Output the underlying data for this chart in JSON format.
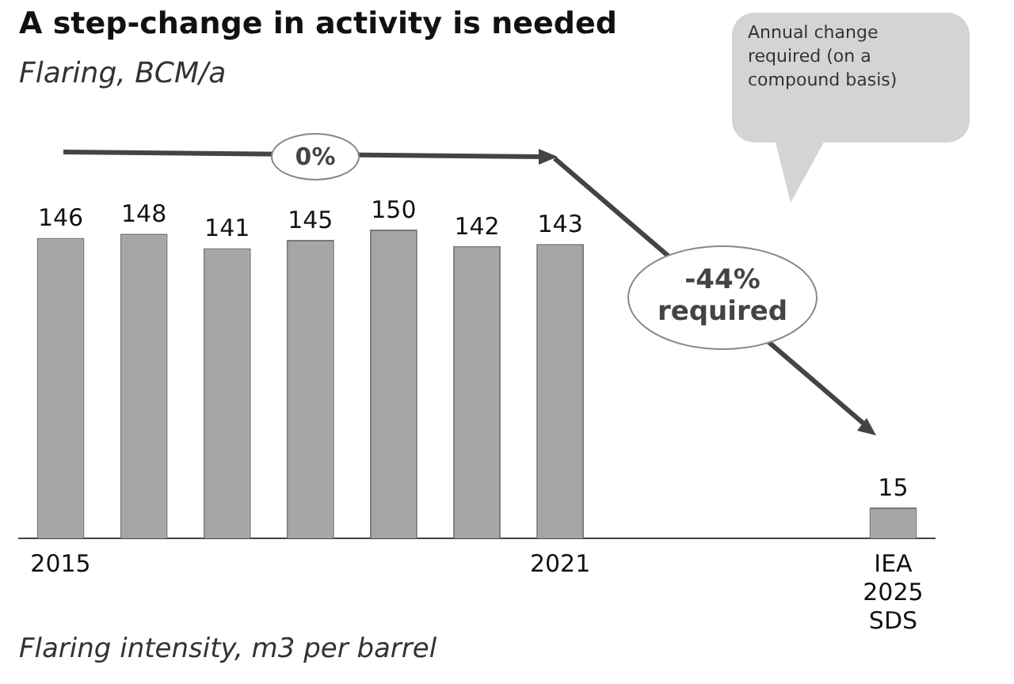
{
  "chart_data": {
    "type": "bar",
    "title": "A step-change in activity is needed",
    "subtitle": "Flaring, BCM/a",
    "categories": [
      "2015",
      null,
      null,
      null,
      null,
      null,
      "2021",
      null,
      null,
      null,
      "IEA\n2025\nSDS"
    ],
    "values": [
      146,
      148,
      141,
      145,
      150,
      142,
      143,
      null,
      null,
      null,
      15
    ],
    "color": "#a6a6a6",
    "tick_labels": "x",
    "grid": false,
    "data_labels": true,
    "annotations": [
      "Annual change required (on a compound basis)",
      "0%",
      "-44% required",
      "Flaring intensity, m3 per barrel"
    ]
  }
}
